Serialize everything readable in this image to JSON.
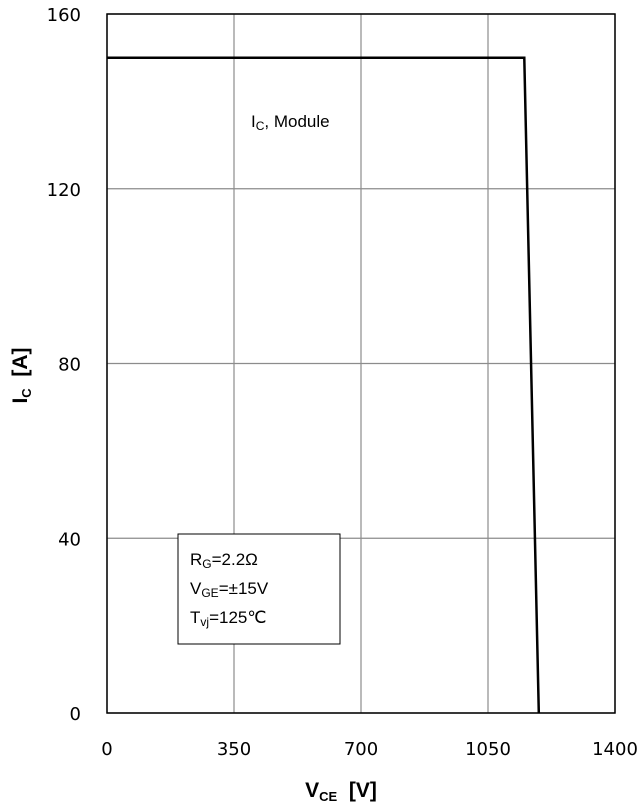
{
  "chart_data": {
    "type": "line",
    "title": "",
    "xlabel": {
      "main": "V",
      "sub": "CE",
      "unit": "  [V]"
    },
    "ylabel": {
      "main": "I",
      "sub": "C",
      "unit": "  [A]"
    },
    "xlim": [
      0,
      1400
    ],
    "ylim": [
      0,
      160
    ],
    "xticks": [
      0,
      350,
      700,
      1050,
      1400
    ],
    "yticks": [
      0,
      40,
      80,
      120,
      160
    ],
    "grid": true,
    "legend": "none",
    "series": [
      {
        "color": "#000000",
        "x": [
          0,
          1150,
          1190
        ],
        "y": [
          150,
          150,
          0
        ]
      }
    ],
    "curve_label": {
      "main": "I",
      "sub": "C",
      "rest": ", Module"
    },
    "param_box": [
      {
        "main": "R",
        "sub": "G",
        "rest": "=2.2Ω"
      },
      {
        "main": "V",
        "sub": "GE",
        "rest": "=±15V"
      },
      {
        "main": "T",
        "sub": "vj",
        "rest": "=125℃"
      }
    ]
  }
}
